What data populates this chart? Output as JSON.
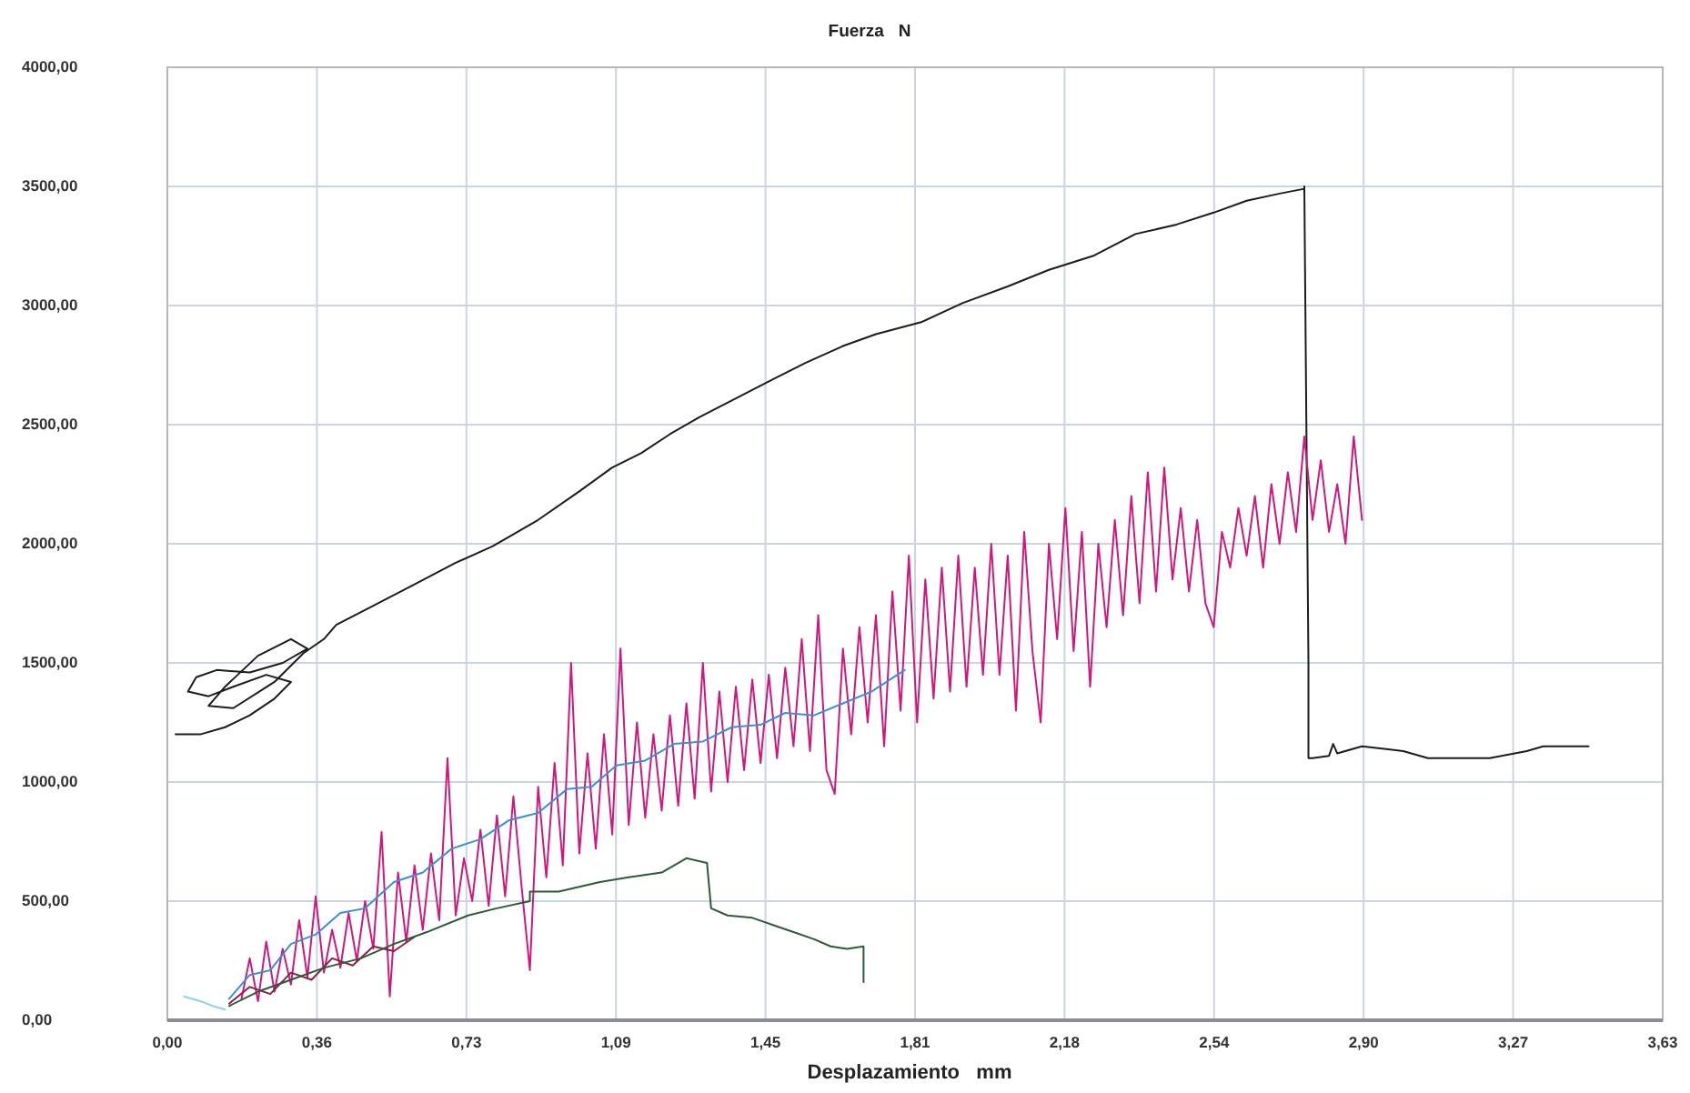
{
  "chart_data": {
    "type": "line",
    "title": "Fuerza   N",
    "xlabel": "Desplazamiento   mm",
    "xlim": [
      0,
      3.63
    ],
    "ylim": [
      0,
      4000
    ],
    "xticks": [
      {
        "value": 0,
        "label": "0,00"
      },
      {
        "value": 0.363,
        "label": "0,36"
      },
      {
        "value": 0.726,
        "label": "0,73"
      },
      {
        "value": 1.089,
        "label": "1,09"
      },
      {
        "value": 1.452,
        "label": "1,45"
      },
      {
        "value": 1.815,
        "label": "1,81"
      },
      {
        "value": 2.178,
        "label": "2,18"
      },
      {
        "value": 2.541,
        "label": "2,54"
      },
      {
        "value": 2.904,
        "label": "2,90"
      },
      {
        "value": 3.267,
        "label": "3,27"
      },
      {
        "value": 3.63,
        "label": "3,63"
      }
    ],
    "yticks": [
      {
        "value": 0,
        "label": "0,00"
      },
      {
        "value": 500,
        "label": "500,00"
      },
      {
        "value": 1000,
        "label": "1000,00"
      },
      {
        "value": 1500,
        "label": "1500,00"
      },
      {
        "value": 2000,
        "label": "2000,00"
      },
      {
        "value": 2500,
        "label": "2500,00"
      },
      {
        "value": 3000,
        "label": "3000,00"
      },
      {
        "value": 3500,
        "label": "3500,00"
      },
      {
        "value": 4000,
        "label": "4000,00"
      }
    ],
    "grid": true,
    "series": [
      {
        "color": "#1c1c1c",
        "x": [
          0.02,
          0.08,
          0.14,
          0.2,
          0.26,
          0.3,
          0.24,
          0.16,
          0.1,
          0.05,
          0.07,
          0.12,
          0.2,
          0.28,
          0.34,
          0.3,
          0.22,
          0.14,
          0.1,
          0.16,
          0.26,
          0.33,
          0.38,
          0.41,
          0.5,
          0.6,
          0.7,
          0.79,
          0.9,
          1.0,
          1.08,
          1.15,
          1.22,
          1.29,
          1.38,
          1.47,
          1.55,
          1.64,
          1.72,
          1.83,
          1.93,
          2.04,
          2.14,
          2.25,
          2.35,
          2.45,
          2.54,
          2.62,
          2.7,
          2.76,
          2.76,
          2.77,
          2.77,
          2.78,
          2.82,
          2.83,
          2.84,
          2.9,
          3.0,
          3.06,
          3.21,
          3.3,
          3.34,
          3.45
        ],
        "values": [
          1200,
          1200,
          1230,
          1280,
          1350,
          1420,
          1450,
          1400,
          1360,
          1380,
          1440,
          1470,
          1460,
          1500,
          1560,
          1600,
          1530,
          1400,
          1320,
          1310,
          1420,
          1540,
          1600,
          1660,
          1740,
          1830,
          1920,
          1990,
          2100,
          2220,
          2320,
          2380,
          2460,
          2530,
          2610,
          2690,
          2760,
          2830,
          2880,
          2930,
          3010,
          3080,
          3150,
          3210,
          3300,
          3340,
          3390,
          3440,
          3470,
          3490,
          3500,
          1500,
          1100,
          1100,
          1110,
          1160,
          1120,
          1150,
          1130,
          1100,
          1100,
          1130,
          1150,
          1150
        ]
      },
      {
        "color": "#d0187c",
        "x": [
          0.18,
          0.2,
          0.22,
          0.24,
          0.26,
          0.28,
          0.3,
          0.32,
          0.34,
          0.36,
          0.38,
          0.4,
          0.42,
          0.44,
          0.46,
          0.48,
          0.5,
          0.52,
          0.54,
          0.56,
          0.58,
          0.6,
          0.62,
          0.64,
          0.66,
          0.68,
          0.7,
          0.72,
          0.74,
          0.76,
          0.78,
          0.8,
          0.82,
          0.84,
          0.86,
          0.88,
          0.9,
          0.92,
          0.94,
          0.96,
          0.98,
          1.0,
          1.02,
          1.04,
          1.06,
          1.08,
          1.1,
          1.12,
          1.14,
          1.16,
          1.18,
          1.2,
          1.22,
          1.24,
          1.26,
          1.28,
          1.3,
          1.32,
          1.34,
          1.36,
          1.38,
          1.4,
          1.42,
          1.44,
          1.46,
          1.48,
          1.5,
          1.52,
          1.54,
          1.56,
          1.58,
          1.6,
          1.62,
          1.64,
          1.66,
          1.68,
          1.7,
          1.72,
          1.74,
          1.76,
          1.78,
          1.8,
          1.82,
          1.84,
          1.86,
          1.88,
          1.9,
          1.92,
          1.94,
          1.96,
          1.98,
          2.0,
          2.02,
          2.04,
          2.06,
          2.08,
          2.1,
          2.12,
          2.14,
          2.16,
          2.18,
          2.2,
          2.22,
          2.24,
          2.26,
          2.28,
          2.3,
          2.32,
          2.34,
          2.36,
          2.38,
          2.4,
          2.42,
          2.44,
          2.46,
          2.48,
          2.5,
          2.52,
          2.54,
          2.56,
          2.58,
          2.6,
          2.62,
          2.64,
          2.66,
          2.68,
          2.7,
          2.72,
          2.74,
          2.76,
          2.78,
          2.8,
          2.82,
          2.84,
          2.86,
          2.88,
          2.9
        ],
        "values": [
          90,
          260,
          80,
          330,
          120,
          300,
          150,
          420,
          180,
          520,
          200,
          380,
          220,
          450,
          250,
          500,
          300,
          790,
          100,
          620,
          330,
          650,
          380,
          700,
          420,
          1100,
          440,
          680,
          500,
          800,
          480,
          860,
          520,
          940,
          560,
          210,
          980,
          600,
          1080,
          650,
          1500,
          700,
          1120,
          720,
          1200,
          780,
          1560,
          820,
          1250,
          850,
          1200,
          880,
          1280,
          900,
          1330,
          930,
          1500,
          960,
          1380,
          1000,
          1400,
          1050,
          1430,
          1080,
          1450,
          1100,
          1480,
          1150,
          1600,
          1130,
          1700,
          1050,
          950,
          1560,
          1200,
          1650,
          1250,
          1700,
          1150,
          1800,
          1300,
          1950,
          1250,
          1850,
          1350,
          1900,
          1380,
          1950,
          1400,
          1900,
          1450,
          2000,
          1450,
          1950,
          1300,
          2050,
          1550,
          1250,
          2000,
          1600,
          2150,
          1550,
          2050,
          1400,
          2000,
          1650,
          2100,
          1700,
          2200,
          1750,
          2300,
          1800,
          2320,
          1850,
          2150,
          1800,
          2100,
          1750,
          1650,
          2050,
          1900,
          2150,
          1950,
          2200,
          1900,
          2250,
          2000,
          2300,
          2050,
          2450,
          2100,
          2350,
          2050,
          2250,
          2000,
          2450,
          2100
        ]
      },
      {
        "color": "#8e1e48",
        "x": [
          0.15,
          0.2,
          0.25,
          0.3,
          0.35,
          0.4,
          0.45,
          0.5,
          0.55,
          0.6
        ],
        "values": [
          70,
          140,
          110,
          200,
          170,
          260,
          230,
          310,
          290,
          350
        ]
      },
      {
        "color": "#3b8fd6",
        "x": [
          0.15,
          0.2,
          0.25,
          0.3,
          0.36,
          0.42,
          0.48,
          0.55,
          0.62,
          0.69,
          0.76,
          0.83,
          0.9,
          0.97,
          1.03,
          1.09,
          1.16,
          1.23,
          1.3,
          1.37,
          1.44,
          1.5,
          1.57,
          1.64,
          1.71,
          1.79
        ],
        "values": [
          90,
          190,
          210,
          320,
          360,
          450,
          470,
          580,
          620,
          720,
          760,
          840,
          870,
          970,
          980,
          1070,
          1090,
          1160,
          1170,
          1230,
          1240,
          1290,
          1280,
          1330,
          1380,
          1470
        ]
      },
      {
        "color": "#8fd3e8",
        "x": [
          0.04,
          0.08,
          0.11,
          0.14
        ],
        "values": [
          100,
          80,
          60,
          45
        ]
      },
      {
        "color": "#2e5a35",
        "x": [
          0.15,
          0.22,
          0.3,
          0.38,
          0.47,
          0.55,
          0.63,
          0.73,
          0.8,
          0.88,
          0.88,
          0.95,
          1.05,
          1.12,
          1.2,
          1.26,
          1.31,
          1.32,
          1.36,
          1.42,
          1.47,
          1.52,
          1.57,
          1.61,
          1.65,
          1.69,
          1.69
        ],
        "values": [
          60,
          120,
          170,
          220,
          260,
          320,
          370,
          440,
          470,
          500,
          540,
          540,
          580,
          600,
          620,
          680,
          660,
          470,
          440,
          430,
          400,
          370,
          340,
          310,
          300,
          310,
          160
        ]
      }
    ]
  }
}
